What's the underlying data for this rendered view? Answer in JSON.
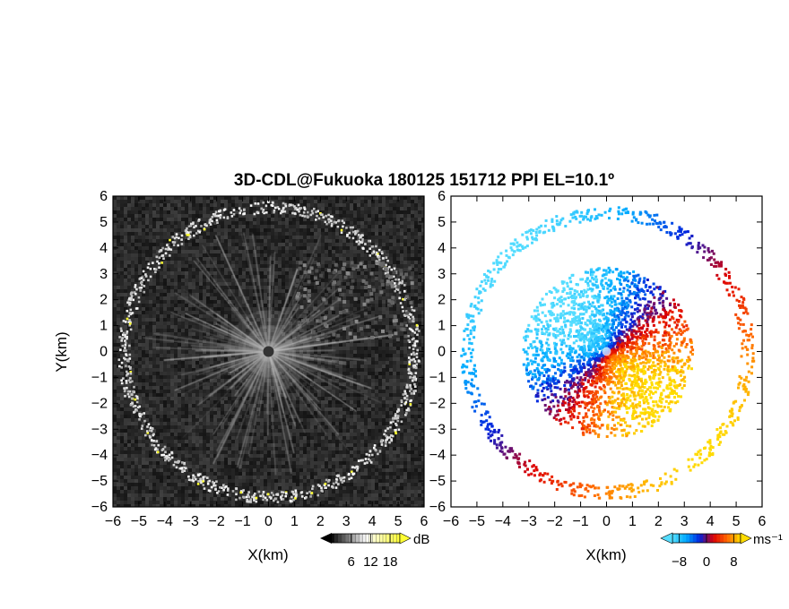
{
  "chart_data": [
    {
      "type": "heatmap",
      "title": "3D-CDL@Fukuoka 180125 151712 PPI EL=10.1º",
      "xlabel": "X(km)",
      "ylabel": "Y(km)",
      "xlim": [
        -6,
        6
      ],
      "ylim": [
        -6,
        6
      ],
      "x_ticks": [
        "−6",
        "−5",
        "−4",
        "−3",
        "−2",
        "−1",
        "0",
        "1",
        "2",
        "3",
        "4",
        "5",
        "6"
      ],
      "y_ticks": [
        "−6",
        "−5",
        "−4",
        "−3",
        "−2",
        "−1",
        "0",
        "1",
        "2",
        "3",
        "4",
        "5",
        "6"
      ],
      "panel": "signal-to-noise ratio",
      "colorbar": {
        "unit": "dB",
        "ticks": [
          "6",
          "12",
          "18"
        ],
        "range": [
          0,
          21
        ],
        "colors": [
          "#000000",
          "#ffffff",
          "#ffff33"
        ]
      },
      "background_level_db": 4,
      "center_bright_spot": [
        0,
        0
      ],
      "clutter_ring_radius_km": 5.6
    },
    {
      "type": "heatmap",
      "xlabel": "X(km)",
      "xlim": [
        -6,
        6
      ],
      "ylim": [
        -6,
        6
      ],
      "x_ticks": [
        "−6",
        "−5",
        "−4",
        "−3",
        "−2",
        "−1",
        "0",
        "1",
        "2",
        "3",
        "4",
        "5",
        "6"
      ],
      "panel": "doppler velocity",
      "colorbar": {
        "unit": "ms⁻¹",
        "ticks": [
          "−8",
          "0",
          "8"
        ],
        "range": [
          -10,
          10
        ],
        "colors": [
          "#55ddff",
          "#00aaff",
          "#0022dd",
          "#dd0000",
          "#ff6600",
          "#ffdd00"
        ]
      },
      "approaching_sector": "northwest (negative)",
      "receding_sector": "southeast (positive)"
    }
  ]
}
